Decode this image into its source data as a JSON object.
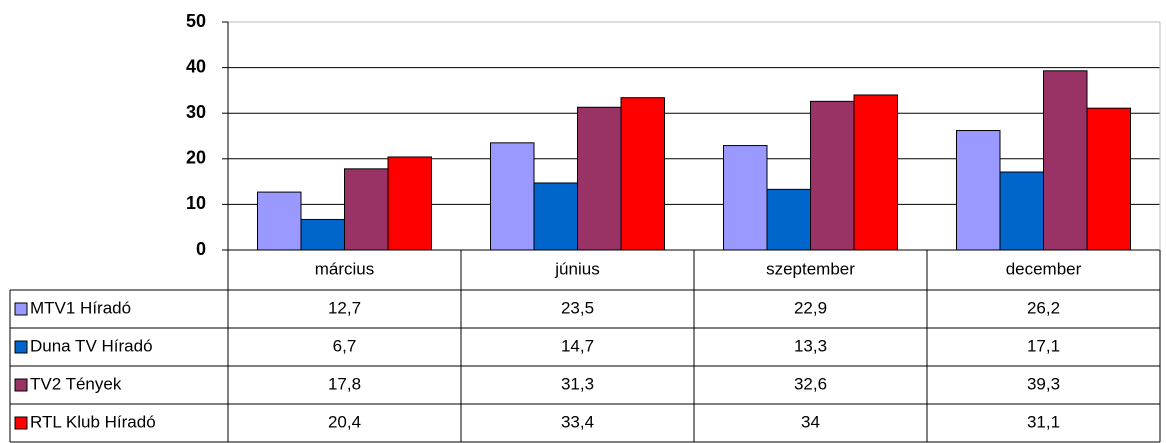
{
  "chart_data": {
    "type": "bar",
    "categories": [
      "március",
      "június",
      "szeptember",
      "december"
    ],
    "series": [
      {
        "name": "MTV1 Híradó",
        "color": "#9999ff",
        "values": [
          12.7,
          23.5,
          22.9,
          26.2
        ],
        "value_labels": [
          "12,7",
          "23,5",
          "22,9",
          "26,2"
        ]
      },
      {
        "name": "Duna TV Híradó",
        "color": "#0066cc",
        "values": [
          6.7,
          14.7,
          13.3,
          17.1
        ],
        "value_labels": [
          "6,7",
          "14,7",
          "13,3",
          "17,1"
        ]
      },
      {
        "name": "TV2 Tények",
        "color": "#993366",
        "values": [
          17.8,
          31.3,
          32.6,
          39.3
        ],
        "value_labels": [
          "17,8",
          "31,3",
          "32,6",
          "39,3"
        ]
      },
      {
        "name": "RTL Klub Híradó",
        "color": "#ff0000",
        "values": [
          20.4,
          33.4,
          34,
          31.1
        ],
        "value_labels": [
          "20,4",
          "33,4",
          "34",
          "31,1"
        ]
      }
    ],
    "ylim": [
      0,
      50
    ],
    "yticks": [
      0,
      10,
      20,
      30,
      40,
      50
    ],
    "grid": true
  }
}
